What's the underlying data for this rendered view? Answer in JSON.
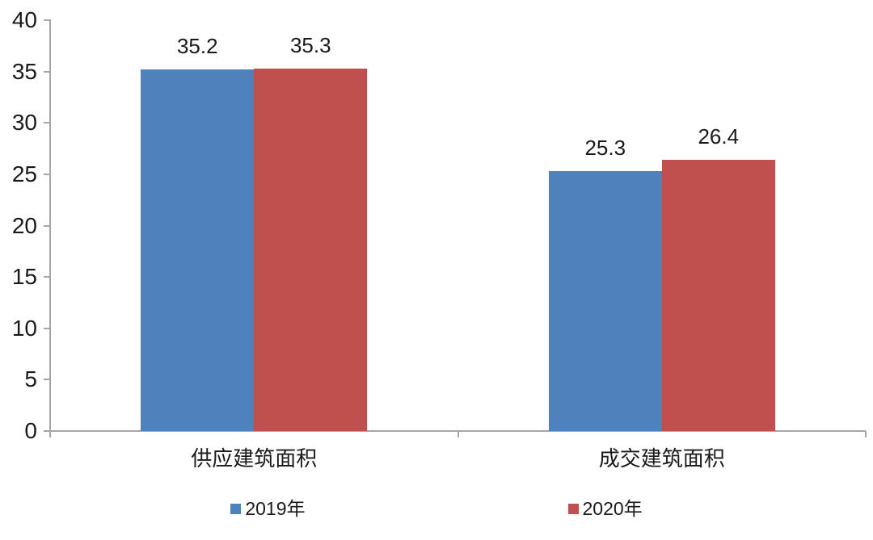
{
  "chart_data": {
    "type": "bar",
    "title": "",
    "xlabel": "",
    "ylabel": "",
    "categories": [
      "供应建筑面积",
      "成交建筑面积"
    ],
    "series": [
      {
        "name": "2019年",
        "color": "#4F81BD",
        "values": [
          35.2,
          25.3
        ]
      },
      {
        "name": "2020年",
        "color": "#C0504D",
        "values": [
          35.3,
          26.4
        ]
      }
    ],
    "ylim": [
      0,
      40
    ],
    "yticks": [
      0,
      5,
      10,
      15,
      20,
      25,
      30,
      35,
      40
    ],
    "grid": false,
    "data_labels": true,
    "legend_position": "bottom",
    "colors": {
      "axis": "#A6A6A6",
      "text": "#1A1A1A"
    }
  }
}
